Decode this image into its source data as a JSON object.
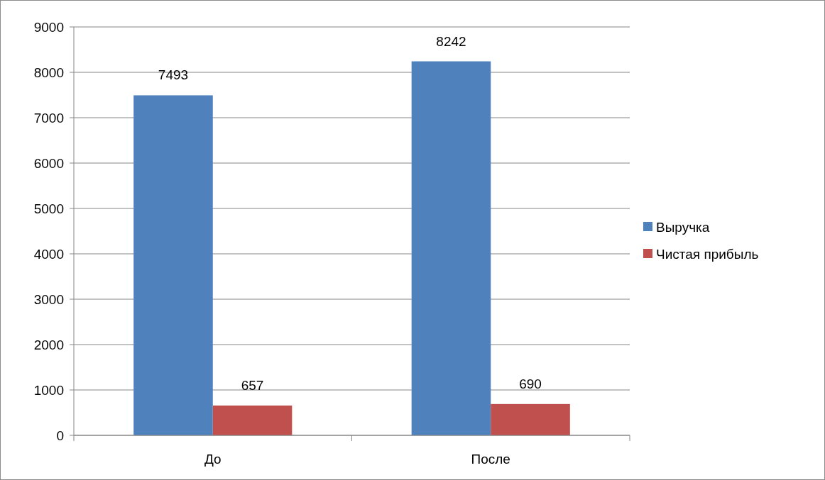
{
  "chart_data": {
    "type": "bar",
    "categories": [
      "До",
      "После"
    ],
    "series": [
      {
        "name": "Выручка",
        "color": "#4f81bd",
        "values": [
          7493,
          8242
        ]
      },
      {
        "name": "Чистая прибыль",
        "color": "#c0504d",
        "values": [
          657,
          690
        ]
      }
    ],
    "ylim": [
      0,
      9000
    ],
    "yticks": [
      0,
      1000,
      2000,
      3000,
      4000,
      5000,
      6000,
      7000,
      8000,
      9000
    ],
    "grid": "y",
    "legend": "right",
    "data_labels": true
  }
}
